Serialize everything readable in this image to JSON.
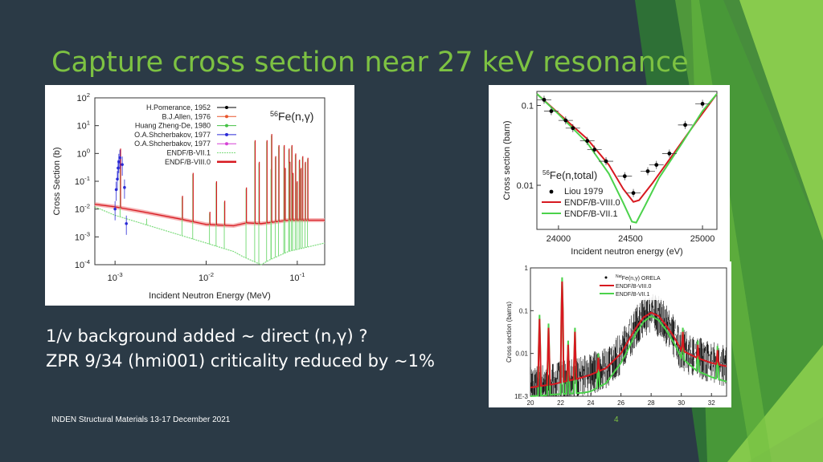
{
  "slide": {
    "title": "Capture cross section near 27 keV resonance",
    "notes": [
      "1/v background added ~ direct (n,γ) ?",
      "ZPR 9/34 (hmi001) criticality reduced by ~1%"
    ],
    "footer": "INDEN Structural Materials 13-17 December 2021",
    "page_number": "4",
    "colors": {
      "background": "#2b3a46",
      "accent": "#7dc242",
      "endf8": "#d71920",
      "endf7": "#4bd24b"
    }
  },
  "chart_data": [
    {
      "type": "line",
      "annotation": "56Fe(n,γ)",
      "xlabel": "Incident Neutron Energy (MeV)",
      "ylabel": "Cross Section (b)",
      "xscale": "log",
      "yscale": "log",
      "xlim": [
        0.0006,
        0.2
      ],
      "ylim": [
        0.0001,
        100
      ],
      "xticks": [
        "10-3",
        "10-2",
        "10-1"
      ],
      "yticks": [
        "10-4",
        "10-3",
        "10-2",
        "10-1",
        "100",
        "101",
        "102"
      ],
      "legend_position": "top-right",
      "series": [
        {
          "name": "H.Pomerance, 1952",
          "color": "#000000"
        },
        {
          "name": "B.J.Allen, 1976",
          "color": "#e8552c"
        },
        {
          "name": "Huang Zheng-De, 1980",
          "color": "#44c144"
        },
        {
          "name": "O.A.Shcherbakov, 1977",
          "color": "#2a2ad6"
        },
        {
          "name": "O.A.Shcherbakov, 1977",
          "color": "#d640d6"
        },
        {
          "name": "ENDF/B-VII.1",
          "color": "#7ddc7d"
        },
        {
          "name": "ENDF/B-VIII.0",
          "color": "#d71920"
        }
      ],
      "endf8_background": {
        "x": [
          0.0006,
          0.001,
          0.002,
          0.005,
          0.01,
          0.02,
          0.028,
          0.04,
          0.08,
          0.2
        ],
        "y": [
          0.015,
          0.012,
          0.008,
          0.0045,
          0.0028,
          0.0025,
          0.0032,
          0.003,
          0.004,
          0.004
        ]
      },
      "endf7_background": {
        "x": [
          0.0006,
          0.001,
          0.002,
          0.005,
          0.01,
          0.02,
          0.025,
          0.04,
          0.05,
          0.08,
          0.2
        ],
        "y": [
          0.012,
          0.006,
          0.003,
          0.0012,
          0.0006,
          0.0003,
          0.0002,
          0.0001,
          0.00015,
          0.0003,
          0.0006
        ]
      },
      "resonances": [
        {
          "x": 0.00115,
          "peak": 1.5
        },
        {
          "x": 0.00225,
          "peak": 0.005
        },
        {
          "x": 0.0055,
          "peak": 0.03
        },
        {
          "x": 0.0072,
          "peak": 0.2
        },
        {
          "x": 0.011,
          "peak": 0.008
        },
        {
          "x": 0.013,
          "peak": 0.1
        },
        {
          "x": 0.016,
          "peak": 0.02
        },
        {
          "x": 0.0277,
          "peak": 0.06
        },
        {
          "x": 0.0345,
          "peak": 3
        },
        {
          "x": 0.0383,
          "peak": 0.5
        },
        {
          "x": 0.0466,
          "peak": 3
        },
        {
          "x": 0.052,
          "peak": 0.3
        },
        {
          "x": 0.0525,
          "peak": 5
        },
        {
          "x": 0.058,
          "peak": 0.8
        },
        {
          "x": 0.063,
          "peak": 2
        },
        {
          "x": 0.072,
          "peak": 2
        },
        {
          "x": 0.074,
          "peak": 0.3
        },
        {
          "x": 0.0815,
          "peak": 1.5
        },
        {
          "x": 0.0832,
          "peak": 0.5
        },
        {
          "x": 0.0875,
          "peak": 2
        },
        {
          "x": 0.09,
          "peak": 0.2
        },
        {
          "x": 0.0962,
          "peak": 1
        },
        {
          "x": 0.1,
          "peak": 0.1
        },
        {
          "x": 0.106,
          "peak": 0.6
        },
        {
          "x": 0.11,
          "peak": 0.3
        },
        {
          "x": 0.115,
          "peak": 0.8
        },
        {
          "x": 0.123,
          "peak": 0.5
        },
        {
          "x": 0.131,
          "peak": 0.7
        }
      ],
      "experimental_points": {
        "x": [
          0.001,
          0.00103,
          0.00106,
          0.00108,
          0.0011,
          0.00113,
          0.0012,
          0.00127,
          0.00133
        ],
        "y": [
          0.01,
          0.05,
          0.12,
          0.3,
          0.5,
          0.7,
          0.4,
          0.06,
          0.003
        ]
      }
    },
    {
      "type": "scatter",
      "annotation": "56Fe(n,total)",
      "xlabel": "Incident neutron energy (eV)",
      "ylabel": "Cross section (barn)",
      "xscale": "linear",
      "yscale": "log",
      "xlim": [
        23850,
        25100
      ],
      "ylim": [
        0.0028,
        0.15
      ],
      "xticks": [
        "24000",
        "24500",
        "25000"
      ],
      "yticks": [
        "0.01",
        "0.1"
      ],
      "legend_position": "bottom-left",
      "series": [
        {
          "name": "Liou 1979",
          "color": "#000000",
          "x": [
            23900,
            23950,
            24050,
            24100,
            24200,
            24250,
            24330,
            24460,
            24520,
            24620,
            24680,
            24770,
            24880,
            25000
          ],
          "y": [
            0.118,
            0.085,
            0.065,
            0.052,
            0.036,
            0.028,
            0.02,
            0.013,
            0.008,
            0.015,
            0.018,
            0.025,
            0.057,
            0.105
          ]
        },
        {
          "name": "ENDF/B-VIII.0",
          "color": "#d71920",
          "x": [
            23850,
            24000,
            24200,
            24350,
            24450,
            24520,
            24560,
            24650,
            24800,
            24950,
            25100
          ],
          "y": [
            0.14,
            0.08,
            0.038,
            0.018,
            0.009,
            0.0062,
            0.0065,
            0.0105,
            0.025,
            0.06,
            0.14
          ]
        },
        {
          "name": "ENDF/B-VII.1",
          "color": "#4bd24b",
          "x": [
            23850,
            24000,
            24200,
            24350,
            24450,
            24510,
            24540,
            24600,
            24700,
            24850,
            25000,
            25100
          ],
          "y": [
            0.14,
            0.078,
            0.034,
            0.014,
            0.006,
            0.0035,
            0.0034,
            0.0055,
            0.0125,
            0.032,
            0.085,
            0.14
          ]
        }
      ]
    },
    {
      "type": "line",
      "xlabel": "",
      "ylabel": "Cross section (barns)",
      "xscale": "linear",
      "yscale": "log",
      "xlim": [
        20,
        33
      ],
      "ylim": [
        0.001,
        1
      ],
      "xticks": [
        "20",
        "22",
        "24",
        "26",
        "28",
        "30",
        "32"
      ],
      "yticks": [
        "1E-3",
        "0.01",
        "0.1",
        "1"
      ],
      "legend_position": "top-right",
      "series": [
        {
          "name": "Fe(n,γ) ORELA",
          "name_prefix": "Nat",
          "color": "#000000"
        },
        {
          "name": "ENDF/B-VIII.0",
          "color": "#d71920",
          "x": [
            20,
            21,
            21.5,
            22,
            22.5,
            23,
            23.5,
            24,
            25,
            26,
            26.5,
            27,
            27.5,
            28,
            28.5,
            29,
            29.5,
            30,
            31,
            32,
            33
          ],
          "y": [
            0.0016,
            0.0018,
            0.0019,
            0.0021,
            0.0023,
            0.0025,
            0.0028,
            0.0032,
            0.0045,
            0.01,
            0.02,
            0.04,
            0.07,
            0.09,
            0.075,
            0.045,
            0.025,
            0.012,
            0.008,
            0.006,
            0.005
          ]
        },
        {
          "name": "ENDF/B-VII.1",
          "color": "#4bd24b",
          "x": [
            20,
            21,
            21.5,
            22,
            22.5,
            23,
            23.5,
            24,
            25,
            26,
            26.5,
            27,
            27.5,
            28,
            28.5,
            29,
            29.5,
            30,
            31,
            32,
            33
          ],
          "y": [
            0.001,
            0.00105,
            0.0011,
            0.00112,
            0.00115,
            0.00118,
            0.0012,
            0.0013,
            0.002,
            0.006,
            0.013,
            0.03,
            0.055,
            0.075,
            0.06,
            0.035,
            0.018,
            0.008,
            0.004,
            0.0028,
            0.0022
          ]
        }
      ],
      "spikes": [
        {
          "x": 20.6,
          "peak": 0.08
        },
        {
          "x": 21.2,
          "peak": 0.05
        },
        {
          "x": 22.1,
          "peak": 0.6
        },
        {
          "x": 22.5,
          "peak": 0.02
        },
        {
          "x": 22.95,
          "peak": 0.04
        },
        {
          "x": 24.5,
          "peak": 0.01
        },
        {
          "x": 30.1,
          "peak": 0.04
        },
        {
          "x": 31.1,
          "peak": 0.02
        },
        {
          "x": 32.4,
          "peak": 0.015
        }
      ]
    }
  ]
}
